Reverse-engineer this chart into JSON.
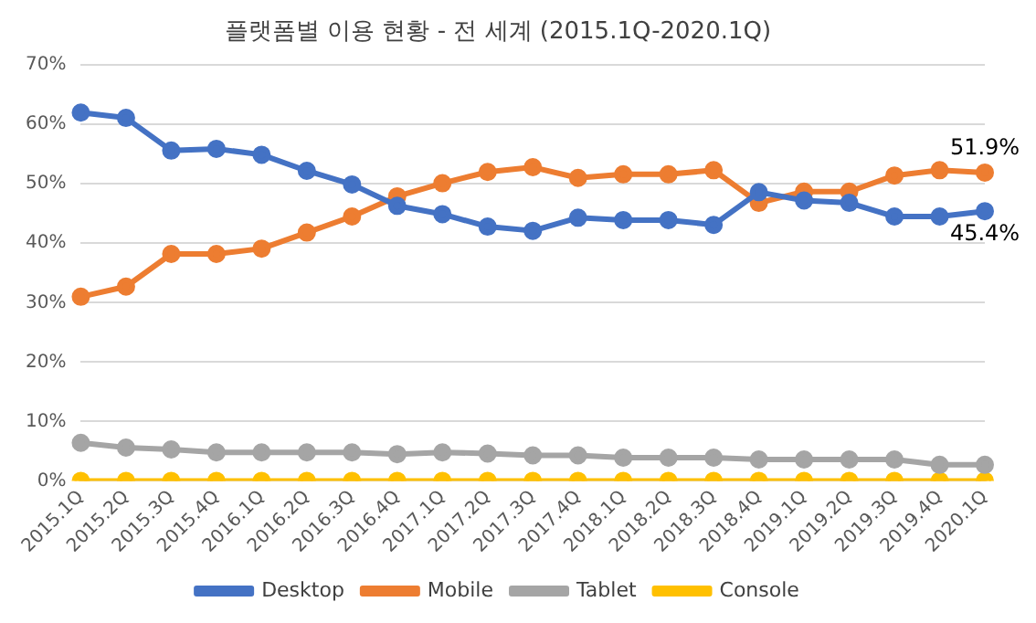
{
  "chart_data": {
    "type": "line",
    "title": "플랫폼별 이용 현황 - 전 세계 (2015.1Q-2020.1Q)",
    "categories": [
      "2015.1Q",
      "2015.2Q",
      "2015.3Q",
      "2015.4Q",
      "2016.1Q",
      "2016.2Q",
      "2016.3Q",
      "2016.4Q",
      "2017.1Q",
      "2017.2Q",
      "2017.3Q",
      "2017.4Q",
      "2018.1Q",
      "2018.2Q",
      "2018.3Q",
      "2018.4Q",
      "2019.1Q",
      "2019.2Q",
      "2019.3Q",
      "2019.4Q",
      "2020.1Q"
    ],
    "series": [
      {
        "name": "Desktop",
        "color": "#4472c4",
        "values": [
          62.0,
          61.1,
          55.6,
          55.9,
          54.9,
          52.2,
          49.9,
          46.3,
          44.9,
          42.8,
          42.1,
          44.3,
          43.9,
          43.9,
          43.1,
          48.6,
          47.2,
          46.8,
          44.5,
          44.5,
          45.4
        ]
      },
      {
        "name": "Mobile",
        "color": "#ed7d31",
        "values": [
          31.0,
          32.7,
          38.2,
          38.2,
          39.1,
          41.8,
          44.5,
          47.9,
          50.1,
          52.0,
          52.8,
          51.0,
          51.6,
          51.6,
          52.3,
          46.8,
          48.7,
          48.7,
          51.4,
          52.3,
          51.9
        ]
      },
      {
        "name": "Tablet",
        "color": "#a5a5a5",
        "values": [
          6.4,
          5.6,
          5.3,
          4.8,
          4.8,
          4.8,
          4.8,
          4.5,
          4.8,
          4.6,
          4.3,
          4.3,
          3.9,
          3.9,
          3.9,
          3.6,
          3.6,
          3.6,
          3.6,
          2.7,
          2.7
        ]
      },
      {
        "name": "Console",
        "color": "#ffc000",
        "values": [
          0,
          0,
          0,
          0,
          0,
          0,
          0,
          0,
          0,
          0,
          0,
          0,
          0,
          0,
          0,
          0,
          0,
          0,
          0,
          0,
          0
        ]
      }
    ],
    "ylim": [
      0,
      70
    ],
    "yticks": [
      {
        "value": 0,
        "label": "0%"
      },
      {
        "value": 10,
        "label": "10%"
      },
      {
        "value": 20,
        "label": "20%"
      },
      {
        "value": 30,
        "label": "30%"
      },
      {
        "value": 40,
        "label": "40%"
      },
      {
        "value": 50,
        "label": "50%"
      },
      {
        "value": 60,
        "label": "60%"
      },
      {
        "value": 70,
        "label": "70%"
      }
    ],
    "annotations": [
      {
        "text": "51.9%",
        "x": "2020.1Q",
        "y": 51.9
      },
      {
        "text": "45.4%",
        "x": "2020.1Q",
        "y": 45.4
      }
    ],
    "grid": "y",
    "legend": "bottom",
    "marker": "circle",
    "line_style": "solid"
  }
}
